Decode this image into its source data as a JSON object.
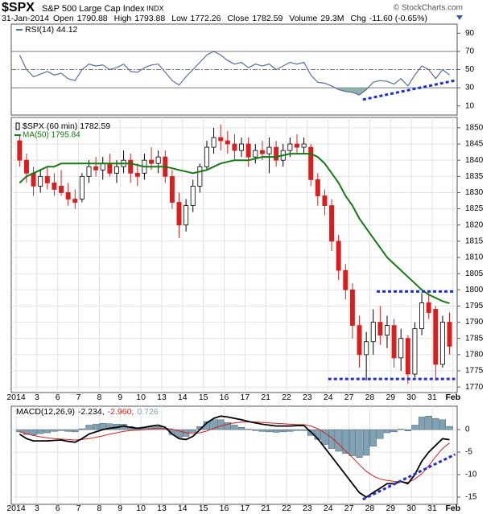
{
  "header": {
    "symbol": "$SPX",
    "name": "S&P 500 Large Cap Index",
    "exchange": "INDX",
    "credit": "© StockCharts.com",
    "date": "31-Jan-2014",
    "quote": [
      {
        "label": "Open",
        "value": 1790.88
      },
      {
        "label": "High",
        "value": 1793.88
      },
      {
        "label": "Low",
        "value": 1772.26
      },
      {
        "label": "Close",
        "value": 1782.59
      },
      {
        "label": "Volume",
        "value": "29.3M"
      },
      {
        "label": "Chg",
        "value": "-11.60 (-0.65%)"
      }
    ]
  },
  "chart_data": [
    {
      "type": "line",
      "xlim": [
        -0.7,
        63.6
      ],
      "ylim": [
        0,
        100
      ],
      "yticks": [
        10,
        30,
        50,
        70,
        90
      ],
      "levels": [
        70,
        50,
        30
      ],
      "fill_color": "#8fb3a8",
      "trend_color": "#1f2fd6",
      "series": [
        {
          "name": "RSI(14) 44.12",
          "color": "#5a6e9c",
          "values": [
            66,
            50,
            42,
            45,
            48,
            44,
            46,
            40,
            38,
            50,
            56,
            54,
            55,
            50,
            52,
            56,
            48,
            47,
            52,
            55,
            56,
            47,
            38,
            33,
            42,
            50,
            58,
            66,
            70,
            66,
            60,
            56,
            58,
            52,
            56,
            54,
            56,
            50,
            54,
            58,
            56,
            58,
            44,
            36,
            35,
            32,
            28,
            26,
            25,
            22,
            28,
            36,
            38,
            37,
            34,
            40,
            32,
            44,
            54,
            50,
            40,
            50,
            44.12
          ]
        }
      ],
      "trend_lines": [
        {
          "x": [
            50,
            63.3
          ],
          "y": [
            17,
            38
          ]
        }
      ]
    },
    {
      "type": "candlestick",
      "title": "$SPX (60 min) 1782.59",
      "up_color": "#ffffff",
      "down_color": "#d62020",
      "trend_color": "#1f2fd6",
      "xlim": [
        -0.7,
        63.6
      ],
      "ylim": [
        1768.3,
        1853.2
      ],
      "yticks": [
        1770,
        1775,
        1780,
        1785,
        1790,
        1795,
        1800,
        1805,
        1810,
        1815,
        1820,
        1825,
        1830,
        1835,
        1840,
        1845,
        1850
      ],
      "grid": true,
      "xticks": [
        {
          "value": 0,
          "label": "2014"
        },
        3,
        6,
        {
          "value": 9,
          "label": "7"
        },
        {
          "value": 12,
          "label": "8"
        },
        {
          "value": 15,
          "label": "9"
        },
        {
          "value": 18,
          "label": "10"
        },
        {
          "value": 21,
          "label": "13"
        },
        {
          "value": 24,
          "label": "14"
        },
        {
          "value": 27,
          "label": "15"
        },
        {
          "value": 30,
          "label": "16"
        },
        {
          "value": 33,
          "label": "17"
        },
        {
          "value": 36,
          "label": "21"
        },
        {
          "value": 39,
          "label": "22"
        },
        {
          "value": 42,
          "label": "23"
        },
        {
          "value": 45,
          "label": "24"
        },
        {
          "value": 48,
          "label": "27"
        },
        {
          "value": 51,
          "label": "28"
        },
        {
          "value": 54,
          "label": "29"
        },
        {
          "value": 57,
          "label": "30"
        },
        {
          "value": 60,
          "label": "31"
        },
        {
          "value": 63,
          "label": "Feb"
        }
      ],
      "ohlc": [
        [
          1846,
          1848,
          1838,
          1840
        ],
        [
          1840,
          1842,
          1833,
          1836
        ],
        [
          1836,
          1838,
          1829,
          1832
        ],
        [
          1832,
          1837,
          1830,
          1835
        ],
        [
          1835,
          1838,
          1831,
          1833
        ],
        [
          1833,
          1836,
          1829,
          1831
        ],
        [
          1832,
          1837,
          1829,
          1830
        ],
        [
          1830,
          1833,
          1826,
          1828
        ],
        [
          1828,
          1831,
          1825,
          1827
        ],
        [
          1828,
          1836,
          1827,
          1835
        ],
        [
          1835,
          1840,
          1833,
          1838
        ],
        [
          1838,
          1841,
          1835,
          1837
        ],
        [
          1837,
          1841,
          1834,
          1839
        ],
        [
          1839,
          1842,
          1835,
          1836
        ],
        [
          1836,
          1840,
          1833,
          1838
        ],
        [
          1838,
          1843,
          1836,
          1840
        ],
        [
          1840,
          1842,
          1833,
          1836
        ],
        [
          1836,
          1839,
          1832,
          1835
        ],
        [
          1836,
          1842,
          1834,
          1840
        ],
        [
          1840,
          1844,
          1837,
          1839
        ],
        [
          1839,
          1843,
          1836,
          1841
        ],
        [
          1841,
          1843,
          1833,
          1835
        ],
        [
          1835,
          1837,
          1825,
          1827
        ],
        [
          1827,
          1830,
          1816,
          1820
        ],
        [
          1820,
          1828,
          1818,
          1826
        ],
        [
          1826,
          1834,
          1824,
          1832
        ],
        [
          1832,
          1839,
          1830,
          1838
        ],
        [
          1838,
          1846,
          1837,
          1844
        ],
        [
          1844,
          1850,
          1842,
          1847
        ],
        [
          1847,
          1851,
          1843,
          1846
        ],
        [
          1846,
          1849,
          1842,
          1845
        ],
        [
          1845,
          1848,
          1840,
          1843
        ],
        [
          1843,
          1847,
          1841,
          1845
        ],
        [
          1845,
          1847,
          1838,
          1841
        ],
        [
          1841,
          1845,
          1839,
          1843
        ],
        [
          1843,
          1846,
          1840,
          1842
        ],
        [
          1842,
          1847,
          1836,
          1844
        ],
        [
          1844,
          1846,
          1838,
          1840
        ],
        [
          1840,
          1845,
          1838,
          1843
        ],
        [
          1843,
          1847,
          1841,
          1845
        ],
        [
          1845,
          1848,
          1842,
          1844
        ],
        [
          1844,
          1847,
          1842,
          1845
        ],
        [
          1844,
          1845,
          1832,
          1834
        ],
        [
          1834,
          1836,
          1826,
          1829
        ],
        [
          1829,
          1831,
          1823,
          1826
        ],
        [
          1826,
          1828,
          1812,
          1815
        ],
        [
          1815,
          1817,
          1803,
          1806
        ],
        [
          1806,
          1808,
          1797,
          1800
        ],
        [
          1800,
          1802,
          1785,
          1789
        ],
        [
          1789,
          1792,
          1776,
          1780
        ],
        [
          1780,
          1787,
          1772,
          1784
        ],
        [
          1784,
          1794,
          1780,
          1790
        ],
        [
          1790,
          1795,
          1783,
          1786
        ],
        [
          1786,
          1792,
          1782,
          1789
        ],
        [
          1789,
          1791,
          1776,
          1779
        ],
        [
          1779,
          1788,
          1775,
          1785
        ],
        [
          1785,
          1786,
          1771,
          1774
        ],
        [
          1774,
          1790,
          1773,
          1788
        ],
        [
          1788,
          1799,
          1786,
          1796
        ],
        [
          1796,
          1799,
          1791,
          1793
        ],
        [
          1794,
          1795,
          1772,
          1777
        ],
        [
          1777,
          1792,
          1776,
          1790
        ],
        [
          1790,
          1793,
          1780,
          1782.59
        ]
      ],
      "series": [
        {
          "name": "MA(50) 1795.84",
          "color": "#137b13",
          "values": [
            1833,
            1835,
            1836,
            1837,
            1838,
            1838,
            1839,
            1839,
            1839,
            1839,
            1839,
            1839,
            1839,
            1839,
            1839,
            1839,
            1839,
            1838.5,
            1838,
            1838,
            1838,
            1838,
            1837.5,
            1837,
            1836.5,
            1836,
            1836.5,
            1837,
            1838,
            1839,
            1839.5,
            1840,
            1840,
            1840,
            1840.5,
            1841,
            1841,
            1841,
            1841.5,
            1842,
            1842,
            1842,
            1842,
            1841,
            1839,
            1836,
            1833,
            1829,
            1826,
            1822,
            1819,
            1816,
            1813,
            1810,
            1808,
            1806,
            1804,
            1802,
            1800,
            1798.5,
            1797.5,
            1796.5,
            1795.84
          ]
        }
      ],
      "trend_lines": [
        {
          "x": [
            45,
            63.3
          ],
          "y": [
            1772.5,
            1772.5
          ]
        },
        {
          "x": [
            52,
            63.3
          ],
          "y": [
            1799.5,
            1799.5
          ]
        }
      ]
    },
    {
      "type": "macd",
      "title": "MACD(12,26,9)",
      "trend_color": "#1f2fd6",
      "xlim": [
        -0.7,
        63.6
      ],
      "ylim": [
        -16.6,
        5.2
      ],
      "yticks": [
        0,
        -5,
        -10,
        -15
      ],
      "grid": true,
      "xticks": [
        {
          "value": 0,
          "label": "2014"
        },
        3,
        6,
        {
          "value": 9,
          "label": "7"
        },
        {
          "value": 12,
          "label": "8"
        },
        {
          "value": 15,
          "label": "9"
        },
        {
          "value": 18,
          "label": "10"
        },
        {
          "value": 21,
          "label": "13"
        },
        {
          "value": 24,
          "label": "14"
        },
        {
          "value": 27,
          "label": "15"
        },
        {
          "value": 30,
          "label": "16"
        },
        {
          "value": 33,
          "label": "17"
        },
        {
          "value": 36,
          "label": "21"
        },
        {
          "value": 39,
          "label": "22"
        },
        {
          "value": 42,
          "label": "23"
        },
        {
          "value": 45,
          "label": "24"
        },
        {
          "value": 48,
          "label": "27"
        },
        {
          "value": 51,
          "label": "28"
        },
        {
          "value": 54,
          "label": "29"
        },
        {
          "value": 57,
          "label": "30"
        },
        {
          "value": 60,
          "label": "31"
        },
        {
          "value": 63,
          "label": "Feb"
        }
      ],
      "series": [
        {
          "name": "-2.234,",
          "color": "#000000",
          "values": [
            -1,
            -2,
            -2.5,
            -2.5,
            -2.5,
            -2.4,
            -2.3,
            -2.6,
            -2.8,
            -2,
            -1,
            -0.5,
            0,
            0.3,
            0.5,
            0.8,
            0.5,
            0.3,
            0.5,
            0.8,
            1,
            0.5,
            -1,
            -2,
            -2.2,
            -1.5,
            0,
            1.5,
            2.5,
            3,
            2.8,
            2.5,
            2.2,
            1.8,
            1.5,
            1.2,
            1,
            0.8,
            0.8,
            0.8,
            0.9,
            0.9,
            -0.5,
            -2,
            -4,
            -6,
            -8,
            -10,
            -12,
            -14,
            -15,
            -14,
            -13,
            -12,
            -12,
            -11.5,
            -12,
            -10,
            -7,
            -5,
            -3.5,
            -2,
            -2.234
          ]
        },
        {
          "name": "-2.960,",
          "color": "#d62020",
          "values": [
            -0.5,
            -0.9,
            -1.3,
            -1.6,
            -1.8,
            -2,
            -2.1,
            -2.2,
            -2.3,
            -2.2,
            -2,
            -1.7,
            -1.4,
            -1,
            -0.7,
            -0.4,
            -0.2,
            -0.1,
            0,
            0.2,
            0.3,
            0.3,
            0.1,
            -0.3,
            -0.7,
            -0.9,
            -0.7,
            -0.3,
            0.3,
            0.8,
            1.2,
            1.5,
            1.7,
            1.7,
            1.7,
            1.6,
            1.5,
            1.4,
            1.3,
            1.2,
            1.1,
            1.1,
            0.8,
            0.2,
            -0.7,
            -1.8,
            -3.2,
            -4.7,
            -6.2,
            -7.8,
            -9.3,
            -10.3,
            -11,
            -11.3,
            -11.5,
            -11.6,
            -11.7,
            -11,
            -9.8,
            -8,
            -6,
            -4.2,
            -2.96
          ]
        },
        {
          "name": "0.726",
          "color": "#7fa3b5",
          "values": [
            -0.5,
            -1.1,
            -1.2,
            -0.9,
            -0.7,
            -0.4,
            -0.2,
            -0.4,
            -0.5,
            0.2,
            1,
            1.2,
            1.4,
            1.3,
            1.2,
            1.2,
            0.7,
            0.4,
            0.5,
            0.6,
            0.7,
            0.2,
            -1.1,
            -1.7,
            -1.5,
            -0.6,
            0.7,
            1.8,
            2.2,
            2.2,
            1.6,
            1,
            0.5,
            0.1,
            -0.2,
            -0.4,
            -0.5,
            -0.6,
            -0.5,
            -0.4,
            -0.2,
            -0.2,
            -1.3,
            -2.2,
            -3.3,
            -4.2,
            -4.8,
            -5.3,
            -5.8,
            -6.2,
            -5.7,
            -3.7,
            -2,
            -0.7,
            -0.5,
            0.1,
            -0.3,
            1,
            2.8,
            3,
            2.5,
            2.2,
            0.726
          ]
        }
      ],
      "trend_lines": [
        {
          "x": [
            50,
            63.3
          ],
          "y": [
            -15.5,
            -5.5
          ]
        }
      ]
    }
  ]
}
